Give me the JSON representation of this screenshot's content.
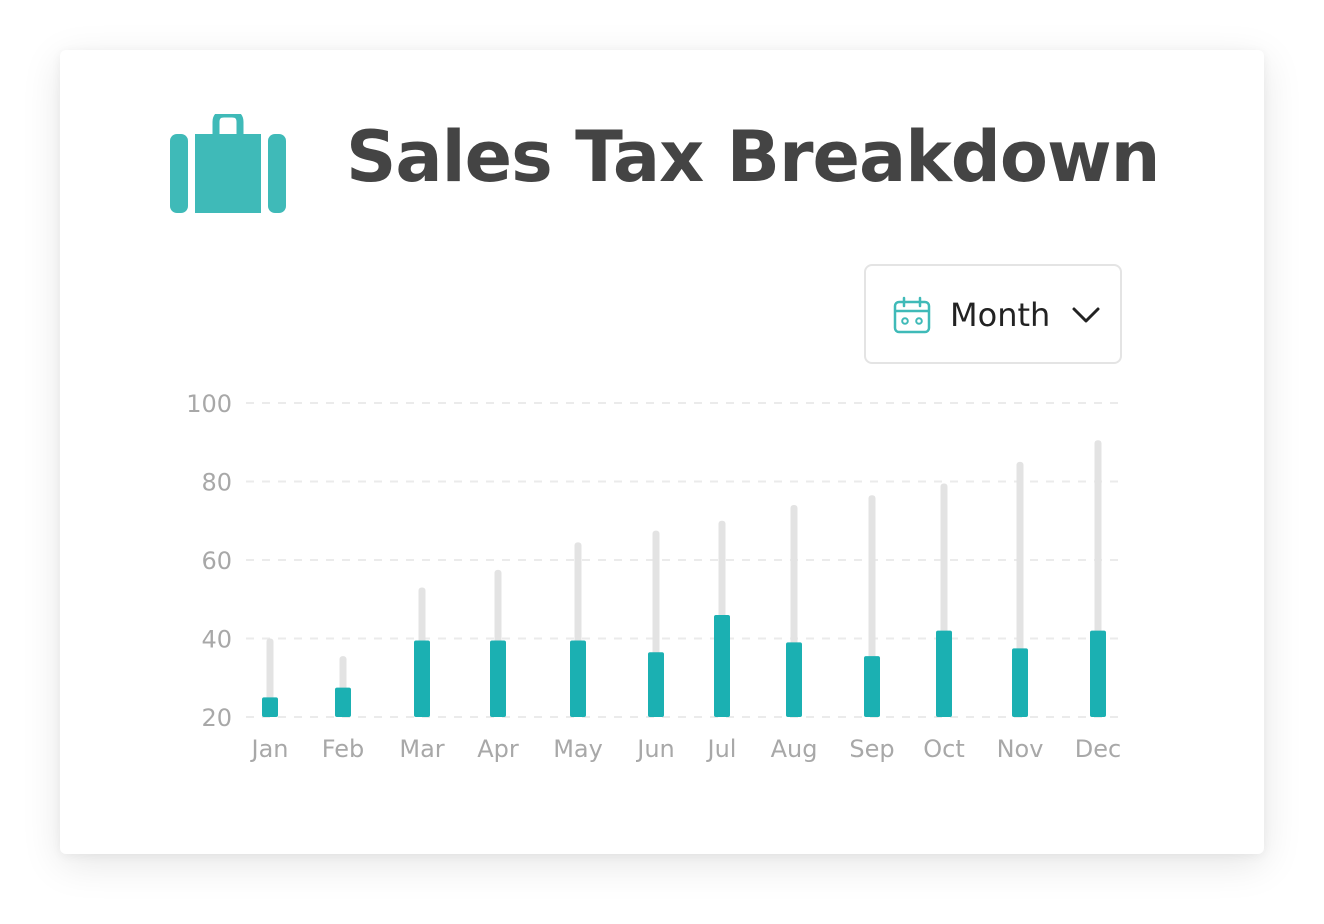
{
  "header": {
    "title": "Sales Tax Breakdown",
    "icon": "briefcase-icon"
  },
  "period_select": {
    "icon": "calendar-icon",
    "selected": "Month",
    "chevron": "chevron-down-icon"
  },
  "colors": {
    "accent": "#1bb0b2",
    "icon": "#3fbab8",
    "track": "#e3e3e3",
    "grid": "#ebebeb",
    "title": "#444444"
  },
  "chart_data": {
    "type": "bar",
    "categories": [
      "Jan",
      "Feb",
      "Mar",
      "Apr",
      "May",
      "Jun",
      "Jul",
      "Aug",
      "Sep",
      "Oct",
      "Nov",
      "Dec"
    ],
    "series": [
      {
        "values": [
          25,
          27.5,
          39.5,
          39.5,
          39.5,
          36.5,
          46,
          39,
          35.5,
          42,
          37.5,
          42
        ]
      },
      {
        "values": [
          40,
          35.5,
          53,
          57.5,
          64.5,
          67.5,
          70,
          74,
          76.5,
          79.5,
          85,
          90.5
        ]
      }
    ],
    "yticks": [
      20,
      40,
      60,
      80,
      100
    ],
    "ylim": [
      20,
      100
    ],
    "grid": true
  }
}
